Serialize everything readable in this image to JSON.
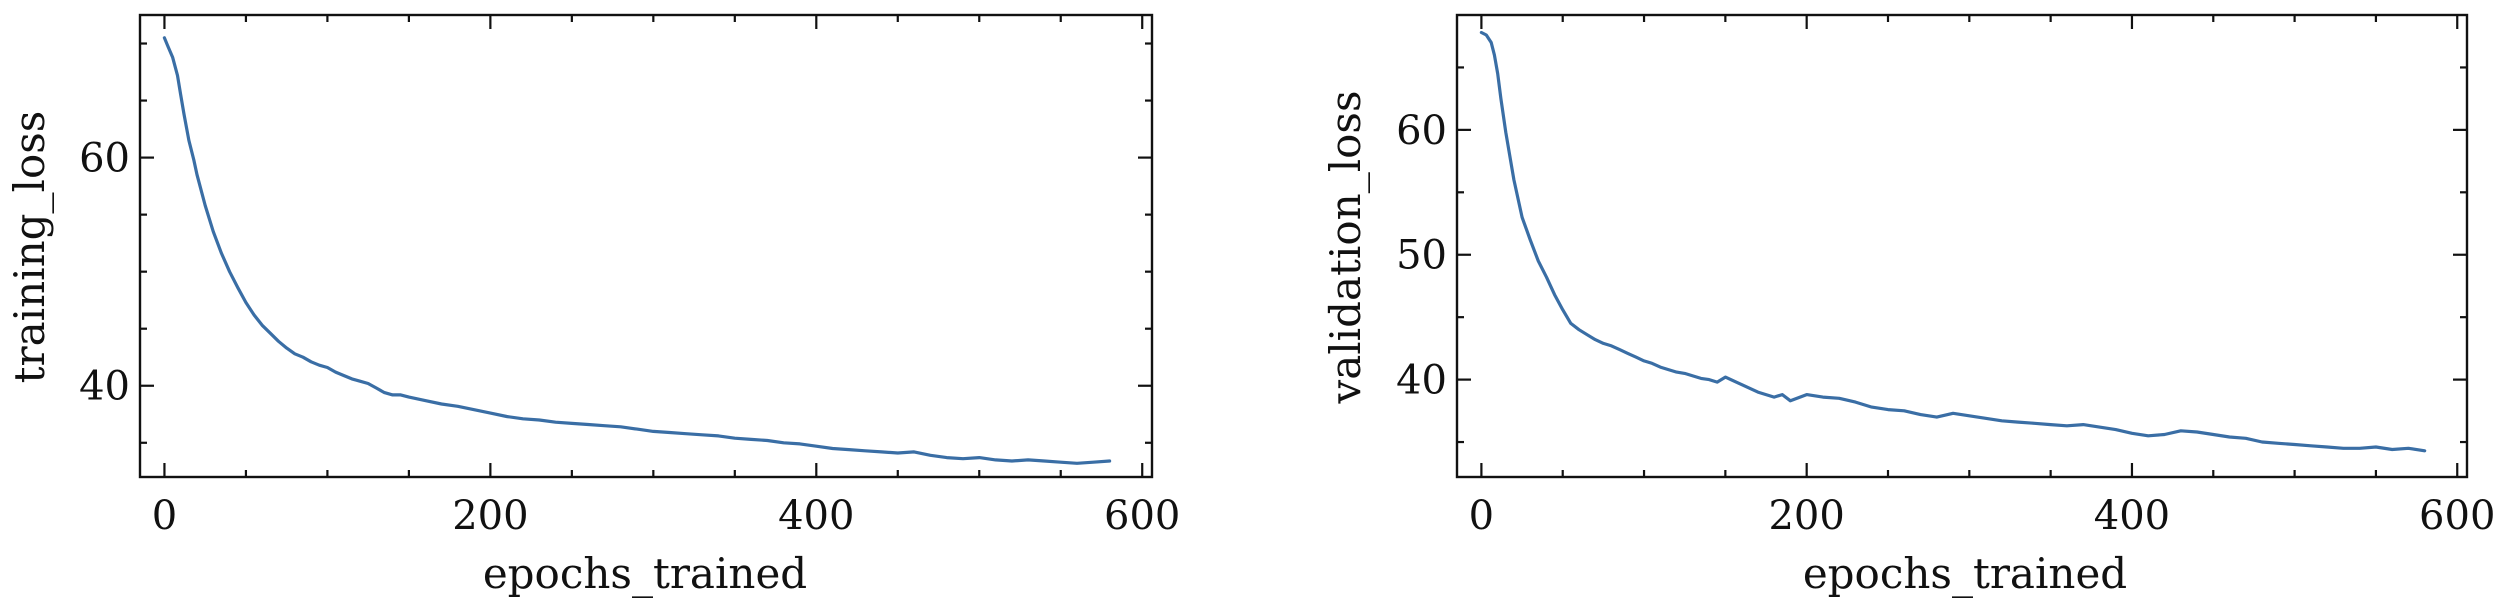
{
  "colors": {
    "series": "#3a6ea5",
    "axis": "#111111",
    "background": "#ffffff"
  },
  "chart_data": [
    {
      "type": "line",
      "xlabel": "epochs_trained",
      "ylabel": "training_loss",
      "xlim": [
        -15,
        606
      ],
      "ylim": [
        32,
        72.5
      ],
      "xticks": [
        0,
        200,
        400,
        600
      ],
      "yticks": [
        40,
        60
      ],
      "yminor": [
        35,
        45,
        50,
        55,
        65,
        70
      ],
      "xminor": [
        50,
        100,
        150,
        250,
        300,
        350,
        450,
        500,
        550
      ],
      "grid": false,
      "series": [
        {
          "name": "training_loss",
          "x": [
            0,
            2,
            5,
            8,
            10,
            12,
            15,
            18,
            20,
            25,
            30,
            35,
            40,
            45,
            50,
            55,
            60,
            65,
            70,
            75,
            80,
            85,
            90,
            95,
            100,
            105,
            110,
            115,
            120,
            125,
            130,
            135,
            140,
            145,
            150,
            160,
            170,
            180,
            190,
            200,
            210,
            220,
            230,
            240,
            250,
            260,
            270,
            280,
            290,
            300,
            310,
            320,
            330,
            340,
            350,
            360,
            370,
            380,
            390,
            400,
            410,
            420,
            430,
            440,
            450,
            460,
            470,
            480,
            490,
            500,
            510,
            520,
            530,
            540,
            550,
            560,
            570,
            580
          ],
          "y": [
            70.5,
            69.8,
            68.8,
            67.2,
            65.5,
            63.8,
            61.5,
            59.8,
            58.5,
            55.8,
            53.5,
            51.6,
            50.0,
            48.6,
            47.3,
            46.2,
            45.3,
            44.6,
            43.9,
            43.3,
            42.8,
            42.5,
            42.1,
            41.8,
            41.6,
            41.2,
            40.9,
            40.6,
            40.4,
            40.2,
            39.8,
            39.4,
            39.2,
            39.2,
            39.0,
            38.7,
            38.4,
            38.2,
            37.9,
            37.6,
            37.3,
            37.1,
            37.0,
            36.8,
            36.7,
            36.6,
            36.5,
            36.4,
            36.2,
            36.0,
            35.9,
            35.8,
            35.7,
            35.6,
            35.4,
            35.3,
            35.2,
            35.0,
            34.9,
            34.7,
            34.5,
            34.4,
            34.3,
            34.2,
            34.1,
            34.2,
            33.9,
            33.7,
            33.6,
            33.7,
            33.5,
            33.4,
            33.5,
            33.4,
            33.3,
            33.2,
            33.3,
            33.4
          ]
        }
      ]
    },
    {
      "type": "line",
      "xlabel": "epochs_trained",
      "ylabel": "validation_loss",
      "xlim": [
        -15,
        606
      ],
      "ylim": [
        32.2,
        69.2
      ],
      "xticks": [
        0,
        200,
        400,
        600
      ],
      "yticks": [
        40,
        50,
        60
      ],
      "yminor": [
        35,
        45,
        55,
        65
      ],
      "xminor": [
        50,
        100,
        150,
        250,
        300,
        350,
        450,
        500,
        550
      ],
      "grid": false,
      "series": [
        {
          "name": "validation_loss",
          "x": [
            0,
            3,
            6,
            8,
            10,
            12,
            15,
            18,
            20,
            25,
            30,
            35,
            40,
            45,
            50,
            55,
            60,
            65,
            70,
            75,
            80,
            85,
            90,
            95,
            100,
            105,
            110,
            115,
            120,
            125,
            130,
            135,
            140,
            145,
            150,
            160,
            170,
            180,
            185,
            190,
            200,
            210,
            220,
            230,
            240,
            250,
            260,
            270,
            280,
            290,
            300,
            310,
            320,
            330,
            340,
            350,
            360,
            370,
            380,
            390,
            400,
            410,
            420,
            430,
            440,
            450,
            460,
            470,
            480,
            490,
            500,
            510,
            520,
            530,
            540,
            550,
            560,
            570,
            580
          ],
          "y": [
            67.8,
            67.6,
            67.0,
            66.0,
            64.5,
            62.5,
            59.8,
            57.5,
            56.0,
            53.0,
            51.2,
            49.5,
            48.2,
            46.8,
            45.6,
            44.5,
            44.0,
            43.6,
            43.2,
            42.9,
            42.7,
            42.4,
            42.1,
            41.8,
            41.5,
            41.3,
            41.0,
            40.8,
            40.6,
            40.5,
            40.3,
            40.1,
            40.0,
            39.8,
            40.2,
            39.6,
            39.0,
            38.6,
            38.8,
            38.3,
            38.8,
            38.6,
            38.5,
            38.2,
            37.8,
            37.6,
            37.5,
            37.2,
            37.0,
            37.3,
            37.1,
            36.9,
            36.7,
            36.6,
            36.5,
            36.4,
            36.3,
            36.4,
            36.2,
            36.0,
            35.7,
            35.5,
            35.6,
            35.9,
            35.8,
            35.6,
            35.4,
            35.3,
            35.0,
            34.9,
            34.8,
            34.7,
            34.6,
            34.5,
            34.5,
            34.6,
            34.4,
            34.5,
            34.3
          ]
        }
      ]
    }
  ]
}
